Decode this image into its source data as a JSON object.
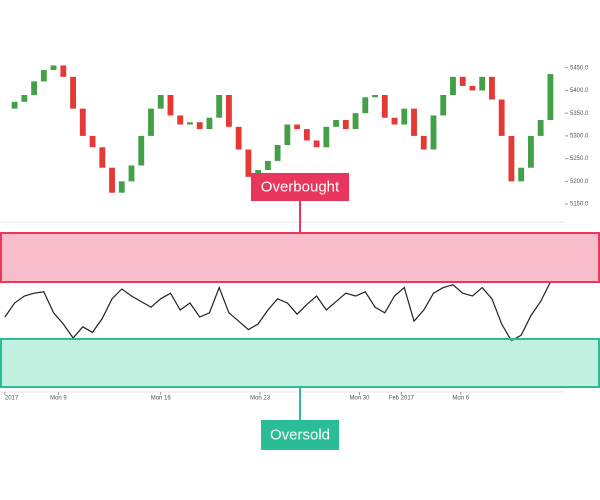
{
  "chart_data": [
    {
      "type": "candlestick",
      "up_color": "#43a047",
      "down_color": "#e53935",
      "values": [
        5360,
        5375,
        5390,
        5420,
        5445,
        5455,
        5430,
        5360,
        5300,
        5275,
        5230,
        5175,
        5200,
        5235,
        5300,
        5360,
        5390,
        5345,
        5325,
        5330,
        5315,
        5340,
        5390,
        5320,
        5270,
        5210,
        5225,
        5245,
        5280,
        5325,
        5315,
        5290,
        5275,
        5320,
        5335,
        5315,
        5350,
        5385,
        5390,
        5340,
        5325,
        5360,
        5300,
        5270,
        5345,
        5390,
        5430,
        5410,
        5400,
        5430,
        5380,
        5300,
        5200,
        5230,
        5300,
        5335,
        5436
      ],
      "xlim": [
        -0.5,
        57.5
      ],
      "ylim": [
        5137,
        5478
      ],
      "yticks": [
        {
          "value": 5450,
          "label": "5450.0"
        },
        {
          "value": 5400,
          "label": "5400.0"
        },
        {
          "value": 5350,
          "label": "5350.0"
        },
        {
          "value": 5300,
          "label": "5300.0"
        },
        {
          "value": 5250,
          "label": "5250.0"
        },
        {
          "value": 5200,
          "label": "5200.0"
        },
        {
          "value": 5150,
          "label": "5150.0"
        }
      ]
    },
    {
      "type": "line",
      "color": "#222222",
      "values": [
        45,
        55,
        60,
        62,
        63,
        48,
        40,
        30,
        38,
        34,
        44,
        58,
        65,
        60,
        56,
        52,
        58,
        62,
        50,
        55,
        45,
        48,
        66,
        48,
        42,
        36,
        40,
        50,
        58,
        55,
        47,
        54,
        60,
        50,
        56,
        62,
        60,
        63,
        52,
        48,
        60,
        66,
        42,
        50,
        62,
        66,
        68,
        62,
        60,
        66,
        58,
        40,
        28,
        32,
        46,
        56,
        70
      ],
      "xlim": [
        -0.5,
        57.5
      ],
      "ylim": [
        0,
        100
      ],
      "xticks": [
        {
          "value": 0,
          "label": "2017"
        },
        {
          "value": 5.5,
          "label": "Mon 9"
        },
        {
          "value": 16,
          "label": "Mon 16"
        },
        {
          "value": 26.2,
          "label": "Mon 23"
        },
        {
          "value": 36.4,
          "label": "Mon 30"
        },
        {
          "value": 40.7,
          "label": "Feb 2017"
        },
        {
          "value": 46.8,
          "label": "Mon 6"
        }
      ],
      "annotations": [
        "Overbought",
        "Oversold"
      ]
    }
  ]
}
